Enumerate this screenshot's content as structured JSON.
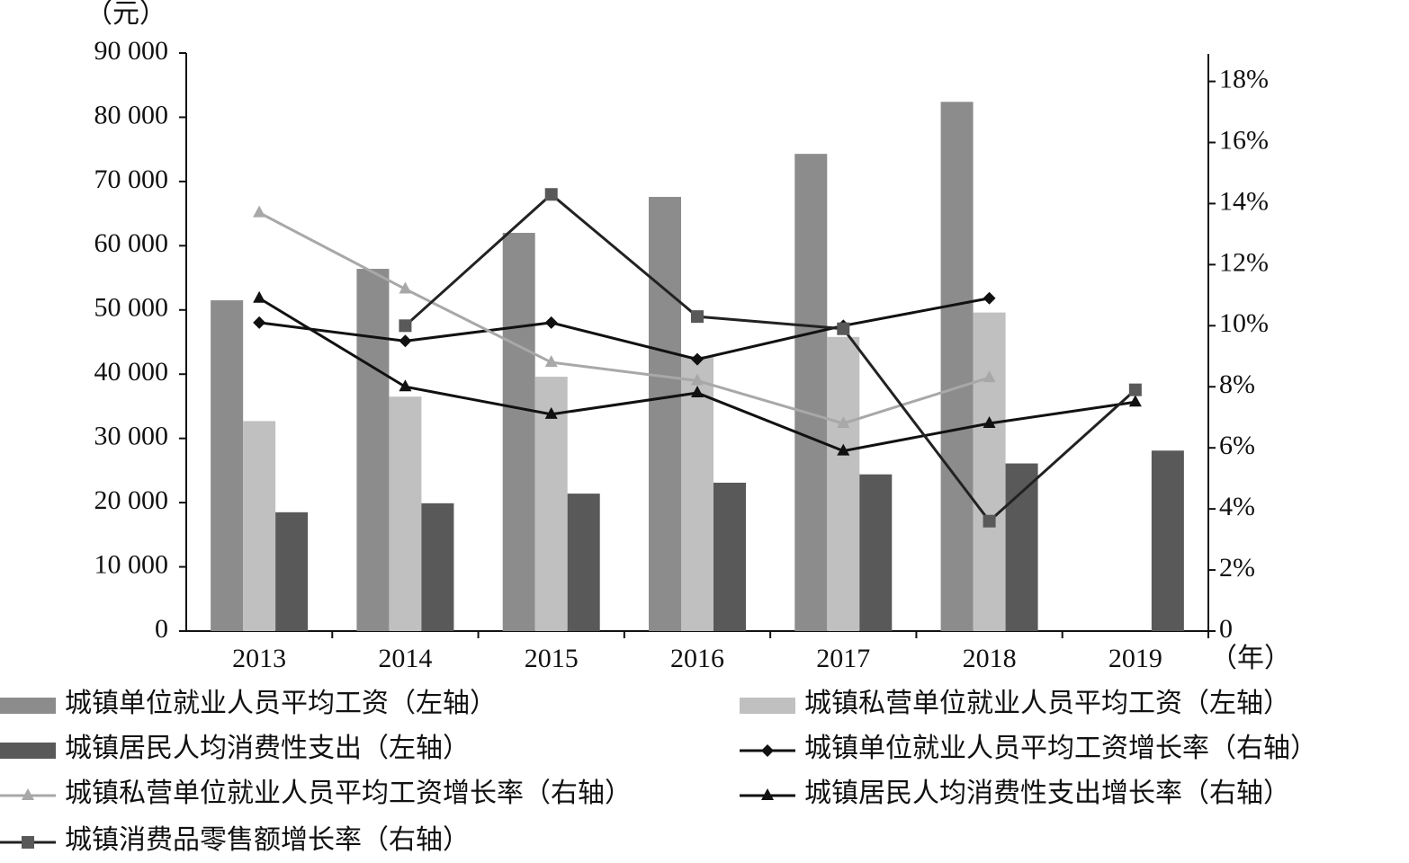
{
  "chart_data": {
    "type": "bar-line",
    "y_unit_label": "（元）",
    "x_unit_label": "（年）",
    "categories": [
      "2013",
      "2014",
      "2015",
      "2016",
      "2017",
      "2018",
      "2019"
    ],
    "series": [
      {
        "name": "城镇单位就业人员平均工资（左轴）",
        "type": "bar",
        "axis": "y",
        "color": "#8c8c8c",
        "values": [
          51500,
          56400,
          62000,
          67600,
          74300,
          82400,
          null
        ]
      },
      {
        "name": "城镇私营单位就业人员平均工资（左轴）",
        "type": "bar",
        "axis": "y",
        "color": "#c0c0c0",
        "values": [
          32700,
          36500,
          39600,
          42800,
          45800,
          49600,
          null
        ]
      },
      {
        "name": "城镇居民人均消费性支出（左轴）",
        "type": "bar",
        "axis": "y",
        "color": "#595959",
        "values": [
          18500,
          19900,
          21400,
          23100,
          24400,
          26100,
          28100
        ]
      },
      {
        "name": "城镇单位就业人员平均工资增长率（右轴）",
        "type": "line",
        "axis": "y2",
        "color": "#111111",
        "marker": "diamond",
        "values": [
          10.1,
          9.5,
          10.1,
          8.9,
          10.0,
          10.9,
          null
        ]
      },
      {
        "name": "城镇私营单位就业人员平均工资增长率（右轴）",
        "type": "line",
        "axis": "y2",
        "color": "#a8a8a8",
        "marker": "triangle",
        "values": [
          13.7,
          11.2,
          8.8,
          8.2,
          6.8,
          8.3,
          null
        ]
      },
      {
        "name": "城镇居民人均消费性支出增长率（右轴）",
        "type": "line",
        "axis": "y2",
        "color": "#111111",
        "marker": "triangle",
        "values": [
          10.9,
          8.0,
          7.1,
          7.8,
          5.9,
          6.8,
          7.5
        ]
      },
      {
        "name": "城镇消费品零售额增长率（右轴）",
        "type": "line",
        "axis": "y2",
        "color": "#222222",
        "marker_color": "#595959",
        "marker": "square",
        "values": [
          null,
          10.0,
          14.3,
          10.3,
          9.9,
          3.6,
          7.9
        ]
      }
    ],
    "ylim": [
      0,
      90000
    ],
    "yticks": [
      0,
      {
        "value": 10000,
        "label": "10 000"
      },
      {
        "value": 20000,
        "label": "20 000"
      },
      {
        "value": 30000,
        "label": "30 000"
      },
      {
        "value": 40000,
        "label": "40 000"
      },
      {
        "value": 50000,
        "label": "50 000"
      },
      {
        "value": 60000,
        "label": "60 000"
      },
      {
        "value": 70000,
        "label": "70 000"
      },
      {
        "value": 80000,
        "label": "80 000"
      },
      {
        "value": 90000,
        "label": "90 000"
      }
    ],
    "y2lim": [
      0,
      18.9
    ],
    "y2ticks": [
      0,
      {
        "value": 2,
        "label": "2%"
      },
      {
        "value": 4,
        "label": "4%"
      },
      {
        "value": 6,
        "label": "6%"
      },
      {
        "value": 8,
        "label": "8%"
      },
      {
        "value": 10,
        "label": "10%"
      },
      {
        "value": 12,
        "label": "12%"
      },
      {
        "value": 14,
        "label": "14%"
      },
      {
        "value": 16,
        "label": "16%"
      },
      {
        "value": 18,
        "label": "18%"
      }
    ],
    "grid": false,
    "legend": "bottom"
  }
}
